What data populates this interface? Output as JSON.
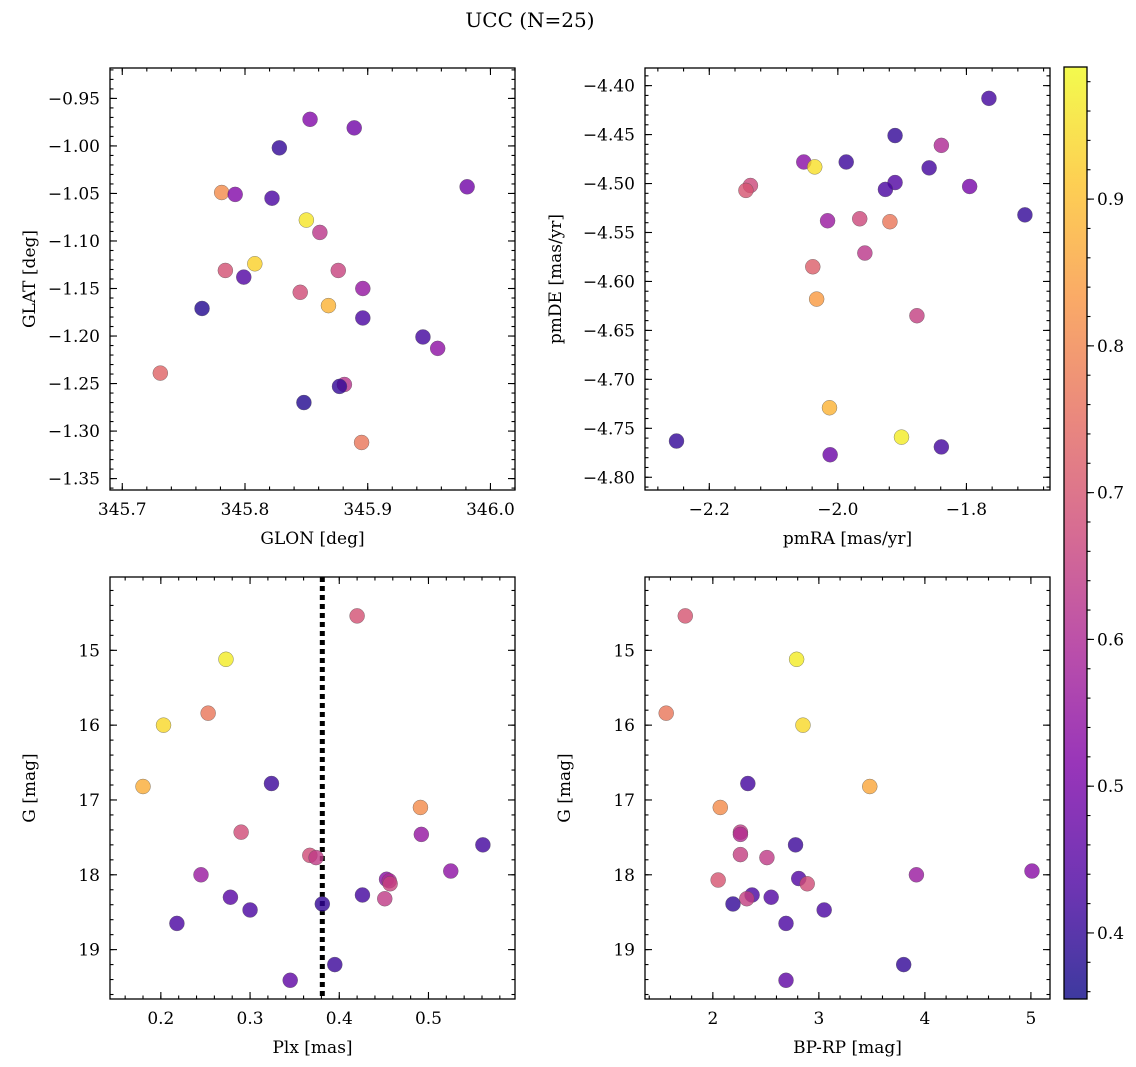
{
  "figure_title": "UCC (N=25)",
  "colorbar": {
    "vmin": 0.355,
    "vmax": 0.99,
    "ticks": [
      0.4,
      0.5,
      0.6,
      0.7,
      0.8,
      0.9
    ],
    "tick_labels": [
      "0.4",
      "0.5",
      "0.6",
      "0.7",
      "0.8",
      "0.9"
    ],
    "colormap": "plasma"
  },
  "chart_data": [
    {
      "type": "scatter",
      "name": "glon-glat",
      "xlabel": "GLON [deg]",
      "ylabel": "GLAT [deg]",
      "xlim": [
        345.69,
        346.02
      ],
      "ylim": [
        -1.362,
        -0.918
      ],
      "y_inverted": false,
      "xticks": [
        345.7,
        345.8,
        345.9,
        346.0
      ],
      "xtick_labels": [
        "345.7",
        "345.8",
        "345.9",
        "346.0"
      ],
      "yticks": [
        -1.35,
        -1.3,
        -1.25,
        -1.2,
        -1.15,
        -1.1,
        -1.05,
        -1.0,
        -0.95
      ],
      "ytick_labels": [
        "−1.35",
        "−1.30",
        "−1.25",
        "−1.20",
        "−1.15",
        "−1.10",
        "−1.05",
        "−1.00",
        "−0.95"
      ],
      "points": [
        {
          "x": 345.853,
          "y": -0.972,
          "c": 0.52
        },
        {
          "x": 345.889,
          "y": -0.981,
          "c": 0.49
        },
        {
          "x": 345.828,
          "y": -1.002,
          "c": 0.4
        },
        {
          "x": 345.981,
          "y": -1.043,
          "c": 0.49
        },
        {
          "x": 345.781,
          "y": -1.049,
          "c": 0.81
        },
        {
          "x": 345.792,
          "y": -1.051,
          "c": 0.52
        },
        {
          "x": 345.822,
          "y": -1.055,
          "c": 0.43
        },
        {
          "x": 345.85,
          "y": -1.078,
          "c": 0.96
        },
        {
          "x": 345.861,
          "y": -1.091,
          "c": 0.63
        },
        {
          "x": 345.808,
          "y": -1.124,
          "c": 0.93
        },
        {
          "x": 345.784,
          "y": -1.131,
          "c": 0.69
        },
        {
          "x": 345.876,
          "y": -1.131,
          "c": 0.66
        },
        {
          "x": 345.799,
          "y": -1.138,
          "c": 0.44
        },
        {
          "x": 345.896,
          "y": -1.15,
          "c": 0.55
        },
        {
          "x": 345.845,
          "y": -1.154,
          "c": 0.68
        },
        {
          "x": 345.868,
          "y": -1.168,
          "c": 0.88
        },
        {
          "x": 345.765,
          "y": -1.171,
          "c": 0.38
        },
        {
          "x": 345.896,
          "y": -1.181,
          "c": 0.43
        },
        {
          "x": 345.945,
          "y": -1.201,
          "c": 0.42
        },
        {
          "x": 345.957,
          "y": -1.213,
          "c": 0.54
        },
        {
          "x": 345.731,
          "y": -1.239,
          "c": 0.73
        },
        {
          "x": 345.881,
          "y": -1.251,
          "c": 0.62
        },
        {
          "x": 345.877,
          "y": -1.253,
          "c": 0.4
        },
        {
          "x": 345.848,
          "y": -1.27,
          "c": 0.38
        },
        {
          "x": 345.895,
          "y": -1.312,
          "c": 0.77
        }
      ]
    },
    {
      "type": "scatter",
      "name": "pmra-pmde",
      "xlabel": "pmRA [mas/yr]",
      "ylabel": "pmDE [mas/yr]",
      "xlim": [
        -2.3,
        -1.67
      ],
      "ylim": [
        -4.813,
        -4.382
      ],
      "y_inverted": false,
      "xticks": [
        -2.2,
        -2.0,
        -1.8
      ],
      "xtick_labels": [
        "−2.2",
        "−2.0",
        "−1.8"
      ],
      "yticks": [
        -4.8,
        -4.75,
        -4.7,
        -4.65,
        -4.6,
        -4.55,
        -4.5,
        -4.45,
        -4.4
      ],
      "ytick_labels": [
        "−4.80",
        "−4.75",
        "−4.70",
        "−4.65",
        "−4.60",
        "−4.55",
        "−4.50",
        "−4.45",
        "−4.40"
      ],
      "points": [
        {
          "x": -1.765,
          "y": -4.413,
          "c": 0.42
        },
        {
          "x": -1.911,
          "y": -4.451,
          "c": 0.4
        },
        {
          "x": -1.839,
          "y": -4.461,
          "c": 0.6
        },
        {
          "x": -2.053,
          "y": -4.478,
          "c": 0.53
        },
        {
          "x": -1.987,
          "y": -4.478,
          "c": 0.41
        },
        {
          "x": -2.036,
          "y": -4.483,
          "c": 0.95
        },
        {
          "x": -1.858,
          "y": -4.484,
          "c": 0.42
        },
        {
          "x": -1.911,
          "y": -4.499,
          "c": 0.44
        },
        {
          "x": -2.136,
          "y": -4.502,
          "c": 0.67
        },
        {
          "x": -1.795,
          "y": -4.503,
          "c": 0.5
        },
        {
          "x": -1.926,
          "y": -4.506,
          "c": 0.43
        },
        {
          "x": -2.143,
          "y": -4.507,
          "c": 0.7
        },
        {
          "x": -1.709,
          "y": -4.532,
          "c": 0.4
        },
        {
          "x": -1.966,
          "y": -4.536,
          "c": 0.67
        },
        {
          "x": -2.016,
          "y": -4.538,
          "c": 0.56
        },
        {
          "x": -1.919,
          "y": -4.539,
          "c": 0.77
        },
        {
          "x": -1.958,
          "y": -4.571,
          "c": 0.63
        },
        {
          "x": -2.039,
          "y": -4.585,
          "c": 0.72
        },
        {
          "x": -2.033,
          "y": -4.618,
          "c": 0.84
        },
        {
          "x": -1.877,
          "y": -4.635,
          "c": 0.65
        },
        {
          "x": -2.013,
          "y": -4.729,
          "c": 0.88
        },
        {
          "x": -1.901,
          "y": -4.759,
          "c": 0.97
        },
        {
          "x": -2.251,
          "y": -4.763,
          "c": 0.4
        },
        {
          "x": -1.839,
          "y": -4.769,
          "c": 0.42
        },
        {
          "x": -2.012,
          "y": -4.777,
          "c": 0.48
        }
      ]
    },
    {
      "type": "scatter",
      "name": "plx-g",
      "xlabel": "Plx [mas]",
      "ylabel": "G [mag]",
      "xlim": [
        0.143,
        0.597
      ],
      "ylim": [
        19.66,
        14.02
      ],
      "y_inverted": true,
      "xticks": [
        0.2,
        0.3,
        0.4,
        0.5
      ],
      "xtick_labels": [
        "0.2",
        "0.3",
        "0.4",
        "0.5"
      ],
      "yticks": [
        15,
        16,
        17,
        18,
        19
      ],
      "ytick_labels": [
        "15",
        "16",
        "17",
        "18",
        "19"
      ],
      "vline": {
        "x": 0.381,
        "style": "dotted",
        "color": "#000000"
      },
      "points": [
        {
          "x": 0.42,
          "y": 14.54,
          "c": 0.69
        },
        {
          "x": 0.273,
          "y": 15.12,
          "c": 0.97
        },
        {
          "x": 0.203,
          "y": 16.0,
          "c": 0.94
        },
        {
          "x": 0.253,
          "y": 15.84,
          "c": 0.77
        },
        {
          "x": 0.18,
          "y": 16.82,
          "c": 0.87
        },
        {
          "x": 0.324,
          "y": 16.78,
          "c": 0.41
        },
        {
          "x": 0.491,
          "y": 17.1,
          "c": 0.81
        },
        {
          "x": 0.29,
          "y": 17.43,
          "c": 0.68
        },
        {
          "x": 0.492,
          "y": 17.46,
          "c": 0.55
        },
        {
          "x": 0.561,
          "y": 17.6,
          "c": 0.42
        },
        {
          "x": 0.367,
          "y": 17.74,
          "c": 0.68
        },
        {
          "x": 0.374,
          "y": 17.77,
          "c": 0.64
        },
        {
          "x": 0.525,
          "y": 17.95,
          "c": 0.54
        },
        {
          "x": 0.245,
          "y": 18.0,
          "c": 0.56
        },
        {
          "x": 0.453,
          "y": 18.06,
          "c": 0.53
        },
        {
          "x": 0.456,
          "y": 18.08,
          "c": 0.6
        },
        {
          "x": 0.457,
          "y": 18.12,
          "c": 0.66
        },
        {
          "x": 0.426,
          "y": 18.27,
          "c": 0.42
        },
        {
          "x": 0.278,
          "y": 18.3,
          "c": 0.45
        },
        {
          "x": 0.451,
          "y": 18.32,
          "c": 0.64
        },
        {
          "x": 0.381,
          "y": 18.39,
          "c": 0.4
        },
        {
          "x": 0.3,
          "y": 18.47,
          "c": 0.43
        },
        {
          "x": 0.218,
          "y": 18.65,
          "c": 0.43
        },
        {
          "x": 0.395,
          "y": 19.2,
          "c": 0.41
        },
        {
          "x": 0.345,
          "y": 19.41,
          "c": 0.46
        }
      ]
    },
    {
      "type": "scatter",
      "name": "bprp-g",
      "xlabel": "BP-RP [mag]",
      "ylabel": "G [mag]",
      "xlim": [
        1.36,
        5.18
      ],
      "ylim": [
        19.66,
        14.02
      ],
      "y_inverted": true,
      "xticks": [
        2,
        3,
        4,
        5
      ],
      "xtick_labels": [
        "2",
        "3",
        "4",
        "5"
      ],
      "yticks": [
        15,
        16,
        17,
        18,
        19
      ],
      "ytick_labels": [
        "15",
        "16",
        "17",
        "18",
        "19"
      ],
      "points": [
        {
          "x": 1.74,
          "y": 14.54,
          "c": 0.7
        },
        {
          "x": 2.79,
          "y": 15.12,
          "c": 0.97
        },
        {
          "x": 1.56,
          "y": 15.84,
          "c": 0.77
        },
        {
          "x": 2.85,
          "y": 16.0,
          "c": 0.94
        },
        {
          "x": 2.33,
          "y": 16.78,
          "c": 0.42
        },
        {
          "x": 3.48,
          "y": 16.82,
          "c": 0.86
        },
        {
          "x": 2.07,
          "y": 17.1,
          "c": 0.81
        },
        {
          "x": 2.26,
          "y": 17.43,
          "c": 0.64
        },
        {
          "x": 2.26,
          "y": 17.46,
          "c": 0.61
        },
        {
          "x": 2.78,
          "y": 17.6,
          "c": 0.41
        },
        {
          "x": 2.26,
          "y": 17.73,
          "c": 0.65
        },
        {
          "x": 2.51,
          "y": 17.77,
          "c": 0.64
        },
        {
          "x": 5.01,
          "y": 17.95,
          "c": 0.53
        },
        {
          "x": 3.92,
          "y": 18.0,
          "c": 0.56
        },
        {
          "x": 2.81,
          "y": 18.05,
          "c": 0.44
        },
        {
          "x": 2.05,
          "y": 18.07,
          "c": 0.7
        },
        {
          "x": 2.89,
          "y": 18.12,
          "c": 0.68
        },
        {
          "x": 2.37,
          "y": 18.27,
          "c": 0.43
        },
        {
          "x": 2.55,
          "y": 18.3,
          "c": 0.44
        },
        {
          "x": 2.32,
          "y": 18.32,
          "c": 0.65
        },
        {
          "x": 2.19,
          "y": 18.39,
          "c": 0.4
        },
        {
          "x": 3.05,
          "y": 18.47,
          "c": 0.43
        },
        {
          "x": 2.69,
          "y": 18.65,
          "c": 0.43
        },
        {
          "x": 3.8,
          "y": 19.2,
          "c": 0.4
        },
        {
          "x": 2.69,
          "y": 19.41,
          "c": 0.46
        }
      ]
    }
  ]
}
